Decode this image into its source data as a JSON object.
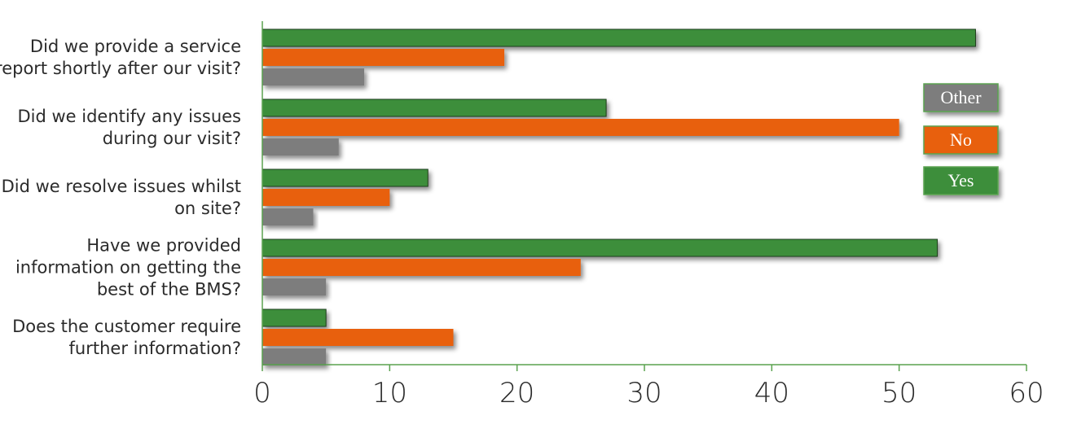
{
  "chart_data": {
    "type": "bar",
    "orientation": "horizontal",
    "categories": [
      [
        "Did we provide a service",
        "report shortly after our visit?"
      ],
      [
        "Did we identify any issues",
        "during our visit?"
      ],
      [
        "Did we resolve issues whilst",
        "on site?"
      ],
      [
        "Have we provided",
        "information on getting the",
        "best of the BMS?"
      ],
      [
        "Does the customer require",
        "further information?"
      ]
    ],
    "series": [
      {
        "name": "Yes",
        "color": "#3e8e3a",
        "values": [
          56,
          27,
          13,
          53,
          5
        ]
      },
      {
        "name": "No",
        "color": "#e8600f",
        "values": [
          19,
          50,
          10,
          25,
          15
        ]
      },
      {
        "name": "Other",
        "color": "#7d7d7d",
        "values": [
          8,
          6,
          4,
          5,
          5
        ]
      }
    ],
    "legend_order": [
      "Other",
      "No",
      "Yes"
    ],
    "legend_placement": "right",
    "xlim": [
      0,
      60
    ],
    "xticks": [
      0,
      10,
      20,
      30,
      40,
      50,
      60
    ],
    "grid": false,
    "axis_color": "#5aa24f"
  }
}
